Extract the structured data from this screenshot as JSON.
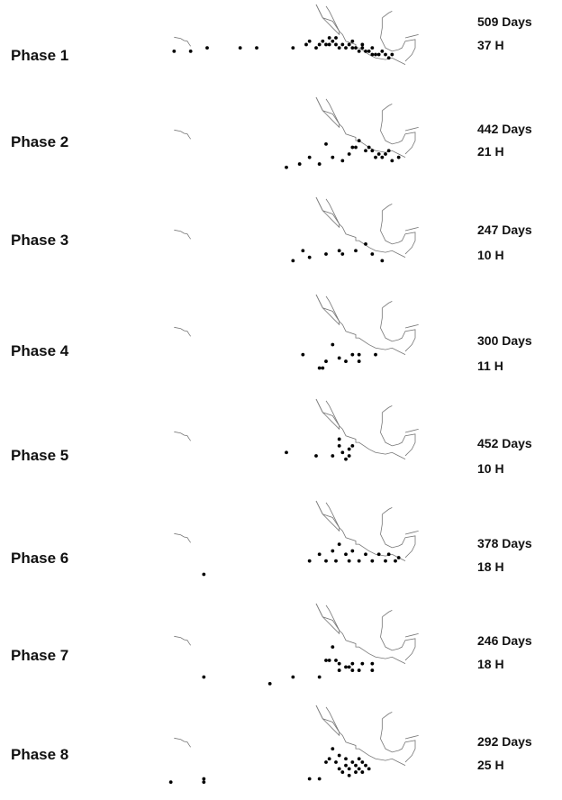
{
  "chart_data": {
    "type": "scatter",
    "panels": [
      {
        "label": "Phase 1",
        "days": "509 Days",
        "hits": "37 H",
        "points": [
          [
            -160,
            18
          ],
          [
            -155,
            18
          ],
          [
            -150,
            19
          ],
          [
            -140,
            19
          ],
          [
            -135,
            19
          ],
          [
            -124,
            19
          ],
          [
            -120,
            20
          ],
          [
            -117,
            19
          ],
          [
            -115,
            21
          ],
          [
            -114,
            20
          ],
          [
            -113,
            20
          ],
          [
            -112,
            21
          ],
          [
            -111,
            20
          ],
          [
            -110,
            19
          ],
          [
            -109,
            20
          ],
          [
            -108,
            19
          ],
          [
            -107,
            20
          ],
          [
            -106,
            19
          ],
          [
            -105,
            19
          ],
          [
            -104,
            18
          ],
          [
            -103,
            19
          ],
          [
            -102,
            18
          ],
          [
            -101,
            18
          ],
          [
            -100,
            17
          ],
          [
            -99,
            17
          ],
          [
            -98,
            17
          ],
          [
            -97,
            18
          ],
          [
            -96,
            17
          ],
          [
            -95,
            16
          ],
          [
            -94,
            17
          ],
          [
            -119,
            21
          ],
          [
            -116,
            20
          ],
          [
            -113,
            22
          ],
          [
            -111,
            22
          ],
          [
            -106,
            21
          ],
          [
            -103,
            20
          ],
          [
            -100,
            19
          ]
        ]
      },
      {
        "label": "Phase 2",
        "days": "442 Days",
        "hits": "21 H",
        "points": [
          [
            -126,
            11
          ],
          [
            -122,
            12
          ],
          [
            -119,
            14
          ],
          [
            -116,
            12
          ],
          [
            -114,
            18
          ],
          [
            -112,
            14
          ],
          [
            -109,
            13
          ],
          [
            -107,
            15
          ],
          [
            -106,
            17
          ],
          [
            -105,
            17
          ],
          [
            -104,
            19
          ],
          [
            -102,
            16
          ],
          [
            -101,
            17
          ],
          [
            -100,
            16
          ],
          [
            -99,
            14
          ],
          [
            -98,
            15
          ],
          [
            -97,
            14
          ],
          [
            -96,
            15
          ],
          [
            -95,
            16
          ],
          [
            -94,
            13
          ],
          [
            -92,
            14
          ]
        ]
      },
      {
        "label": "Phase 3",
        "days": "247 Days",
        "hits": "10 H",
        "points": [
          [
            -124,
            13
          ],
          [
            -121,
            16
          ],
          [
            -119,
            14
          ],
          [
            -114,
            15
          ],
          [
            -110,
            16
          ],
          [
            -109,
            15
          ],
          [
            -105,
            16
          ],
          [
            -102,
            18
          ],
          [
            -100,
            15
          ],
          [
            -97,
            13
          ]
        ]
      },
      {
        "label": "Phase 4",
        "days": "300 Days",
        "hits": "11 H",
        "points": [
          [
            -121,
            14
          ],
          [
            -116,
            10
          ],
          [
            -115,
            10
          ],
          [
            -114,
            12
          ],
          [
            -112,
            17
          ],
          [
            -110,
            13
          ],
          [
            -108,
            12
          ],
          [
            -106,
            14
          ],
          [
            -104,
            12
          ],
          [
            -104,
            14
          ],
          [
            -99,
            14
          ]
        ]
      },
      {
        "label": "Phase 5",
        "days": "452 Days",
        "hits": "10 H",
        "points": [
          [
            -126,
            16
          ],
          [
            -117,
            15
          ],
          [
            -112,
            15
          ],
          [
            -110,
            18
          ],
          [
            -110,
            20
          ],
          [
            -109,
            16
          ],
          [
            -108,
            14
          ],
          [
            -107,
            15
          ],
          [
            -107,
            17
          ],
          [
            -106,
            18
          ]
        ]
      },
      {
        "label": "Phase 6",
        "days": "378 Days",
        "hits": "18 H",
        "points": [
          [
            -151,
            10
          ],
          [
            -119,
            14
          ],
          [
            -116,
            16
          ],
          [
            -114,
            14
          ],
          [
            -112,
            17
          ],
          [
            -111,
            14
          ],
          [
            -110,
            19
          ],
          [
            -108,
            16
          ],
          [
            -107,
            14
          ],
          [
            -106,
            17
          ],
          [
            -104,
            14
          ],
          [
            -102,
            16
          ],
          [
            -100,
            14
          ],
          [
            -98,
            16
          ],
          [
            -96,
            14
          ],
          [
            -95,
            16
          ],
          [
            -93,
            14
          ],
          [
            -92,
            15
          ]
        ]
      },
      {
        "label": "Phase 7",
        "days": "246 Days",
        "hits": "18 H",
        "points": [
          [
            -151,
            10
          ],
          [
            -131,
            8
          ],
          [
            -124,
            10
          ],
          [
            -116,
            10
          ],
          [
            -114,
            15
          ],
          [
            -113,
            15
          ],
          [
            -112,
            19
          ],
          [
            -111,
            15
          ],
          [
            -110,
            12
          ],
          [
            -110,
            14
          ],
          [
            -108,
            13
          ],
          [
            -107,
            13
          ],
          [
            -106,
            12
          ],
          [
            -106,
            14
          ],
          [
            -104,
            12
          ],
          [
            -103,
            14
          ],
          [
            -100,
            12
          ],
          [
            -100,
            14
          ]
        ]
      },
      {
        "label": "Phase 8",
        "days": "292 Days",
        "hits": "25 H",
        "points": [
          [
            -161,
            9
          ],
          [
            -151,
            9
          ],
          [
            -151,
            10
          ],
          [
            -119,
            10
          ],
          [
            -116,
            10
          ],
          [
            -114,
            15
          ],
          [
            -113,
            16
          ],
          [
            -112,
            19
          ],
          [
            -111,
            15
          ],
          [
            -110,
            13
          ],
          [
            -110,
            17
          ],
          [
            -109,
            12
          ],
          [
            -108,
            14
          ],
          [
            -108,
            16
          ],
          [
            -107,
            11
          ],
          [
            -107,
            13
          ],
          [
            -106,
            15
          ],
          [
            -105,
            12
          ],
          [
            -105,
            14
          ],
          [
            -104,
            16
          ],
          [
            -104,
            13
          ],
          [
            -103,
            15
          ],
          [
            -103,
            12
          ],
          [
            -102,
            14
          ],
          [
            -101,
            13
          ]
        ]
      }
    ]
  },
  "colors": {
    "dots": "#000000",
    "coast": "#777777",
    "text": "#111111"
  }
}
